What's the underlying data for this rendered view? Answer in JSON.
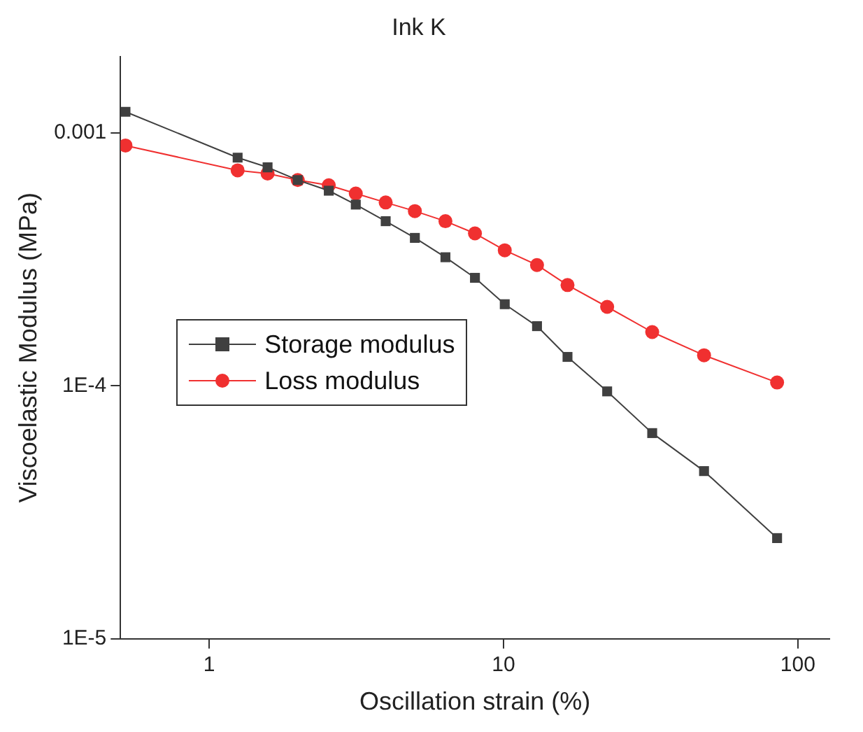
{
  "chart_data": {
    "type": "line",
    "title": "Ink K",
    "xlabel": "Oscillation strain (%)",
    "ylabel": "Viscoelastic Modulus (MPa)",
    "log": "xy",
    "xlim": [
      0.5,
      128
    ],
    "ylim": [
      1e-05,
      0.002
    ],
    "xticks": [
      1,
      10,
      100
    ],
    "yticks": [
      {
        "value": 1e-05,
        "label": "1E-5"
      },
      {
        "value": 0.0001,
        "label": "1E-4"
      },
      0.001
    ],
    "grid": false,
    "legend": "left",
    "line_style": "solid",
    "x": [
      0.52,
      1.25,
      1.58,
      2,
      2.55,
      3.15,
      3.98,
      5.0,
      6.35,
      8.0,
      10.1,
      13,
      16.5,
      22.5,
      32,
      48,
      85
    ],
    "series": [
      {
        "name": "Storage modulus",
        "color": "#404040",
        "marker": "square",
        "values": [
          0.00121,
          0.000797,
          0.00073,
          0.00065,
          0.00059,
          0.00052,
          0.000447,
          0.000384,
          0.000322,
          0.000267,
          0.00021,
          0.000172,
          0.00013,
          9.5e-05,
          6.5e-05,
          4.6e-05,
          2.5e-05
        ]
      },
      {
        "name": "Loss modulus",
        "color": "#f03030",
        "marker": "circle",
        "values": [
          0.00089,
          0.00071,
          0.00069,
          0.00065,
          0.00062,
          0.000575,
          0.00053,
          0.00049,
          0.000447,
          0.0004,
          0.000343,
          0.0003,
          0.00025,
          0.000205,
          0.000163,
          0.000132,
          0.000103
        ]
      }
    ]
  }
}
